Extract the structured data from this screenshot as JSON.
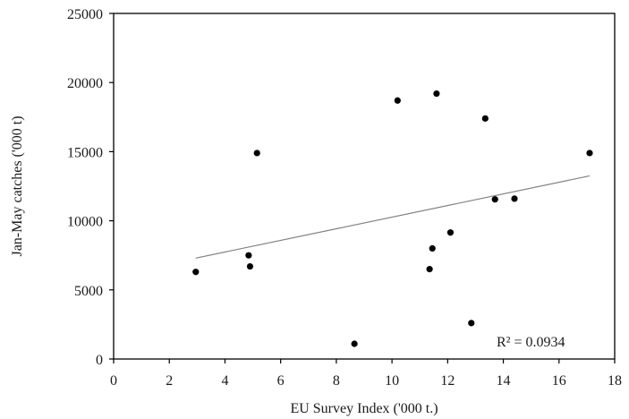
{
  "chart_data": {
    "type": "scatter",
    "xlabel": "EU Survey Index ('000 t.)",
    "ylabel": "Jan-May catches ('000 t)",
    "xlim": [
      0,
      18
    ],
    "ylim": [
      0,
      25000
    ],
    "x_ticks": [
      0,
      2,
      4,
      6,
      8,
      10,
      12,
      14,
      16,
      18
    ],
    "y_ticks": [
      0,
      5000,
      10000,
      15000,
      20000,
      25000
    ],
    "x_tick_labels": [
      "0",
      "2",
      "4",
      "6",
      "8",
      "10",
      "12",
      "14",
      "16",
      "18"
    ],
    "y_tick_labels": [
      "0",
      "5000",
      "10000",
      "15000",
      "20000",
      "25000"
    ],
    "grid": false,
    "legend": "none",
    "series": [
      {
        "points": [
          {
            "x": 2.95,
            "y": 6300
          },
          {
            "x": 4.85,
            "y": 7500
          },
          {
            "x": 4.9,
            "y": 6700
          },
          {
            "x": 5.15,
            "y": 14900
          },
          {
            "x": 8.65,
            "y": 1100
          },
          {
            "x": 10.2,
            "y": 18700
          },
          {
            "x": 11.35,
            "y": 6500
          },
          {
            "x": 11.45,
            "y": 8000
          },
          {
            "x": 11.6,
            "y": 19200
          },
          {
            "x": 12.1,
            "y": 9150
          },
          {
            "x": 12.85,
            "y": 2600
          },
          {
            "x": 13.35,
            "y": 17400
          },
          {
            "x": 13.7,
            "y": 11550
          },
          {
            "x": 14.4,
            "y": 11600
          },
          {
            "x": 17.1,
            "y": 14900
          }
        ],
        "color": "#000000"
      }
    ],
    "trendline": {
      "type": "linear",
      "x_range": [
        2.95,
        17.1
      ],
      "y_start": 7300,
      "y_end": 13250,
      "color": "#808080",
      "label": "R² = 0.0934"
    }
  }
}
